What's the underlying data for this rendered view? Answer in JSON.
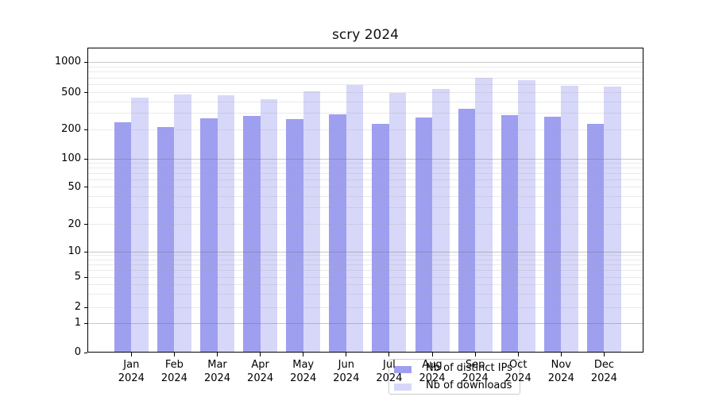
{
  "figure": {
    "title": "scry 2024"
  },
  "chart_data": {
    "type": "bar",
    "title": "scry 2024",
    "year": "2024",
    "months": [
      "Jan",
      "Feb",
      "Mar",
      "Apr",
      "May",
      "Jun",
      "Jul",
      "Aug",
      "Sep",
      "Oct",
      "Nov",
      "Dec"
    ],
    "categories": [
      "Jan 2024",
      "Feb 2024",
      "Mar 2024",
      "Apr 2024",
      "May 2024",
      "Jun 2024",
      "Jul 2024",
      "Aug 2024",
      "Sep 2024",
      "Oct 2024",
      "Nov 2024",
      "Dec 2024"
    ],
    "series": [
      {
        "name": "Nb of distinct IPs",
        "color": "#9f9ff0",
        "values": [
          238,
          212,
          263,
          282,
          262,
          292,
          230,
          270,
          337,
          287,
          276,
          231
        ]
      },
      {
        "name": "Nb of downloads",
        "color": "#d7d7f9",
        "values": [
          443,
          478,
          467,
          427,
          513,
          592,
          497,
          546,
          705,
          666,
          589,
          577
        ]
      }
    ],
    "y_axis": {
      "scale": "log-like (linear below 1)",
      "ticks": [
        0,
        1,
        2,
        5,
        10,
        20,
        50,
        100,
        200,
        500,
        1000
      ],
      "range": [
        0,
        1430
      ]
    },
    "x_axis": {
      "tick_label_line2": "2024"
    },
    "legend": {
      "position": "lower center",
      "entries": [
        "Nb of distinct IPs",
        "Nb of downloads"
      ]
    },
    "grid": "on"
  }
}
